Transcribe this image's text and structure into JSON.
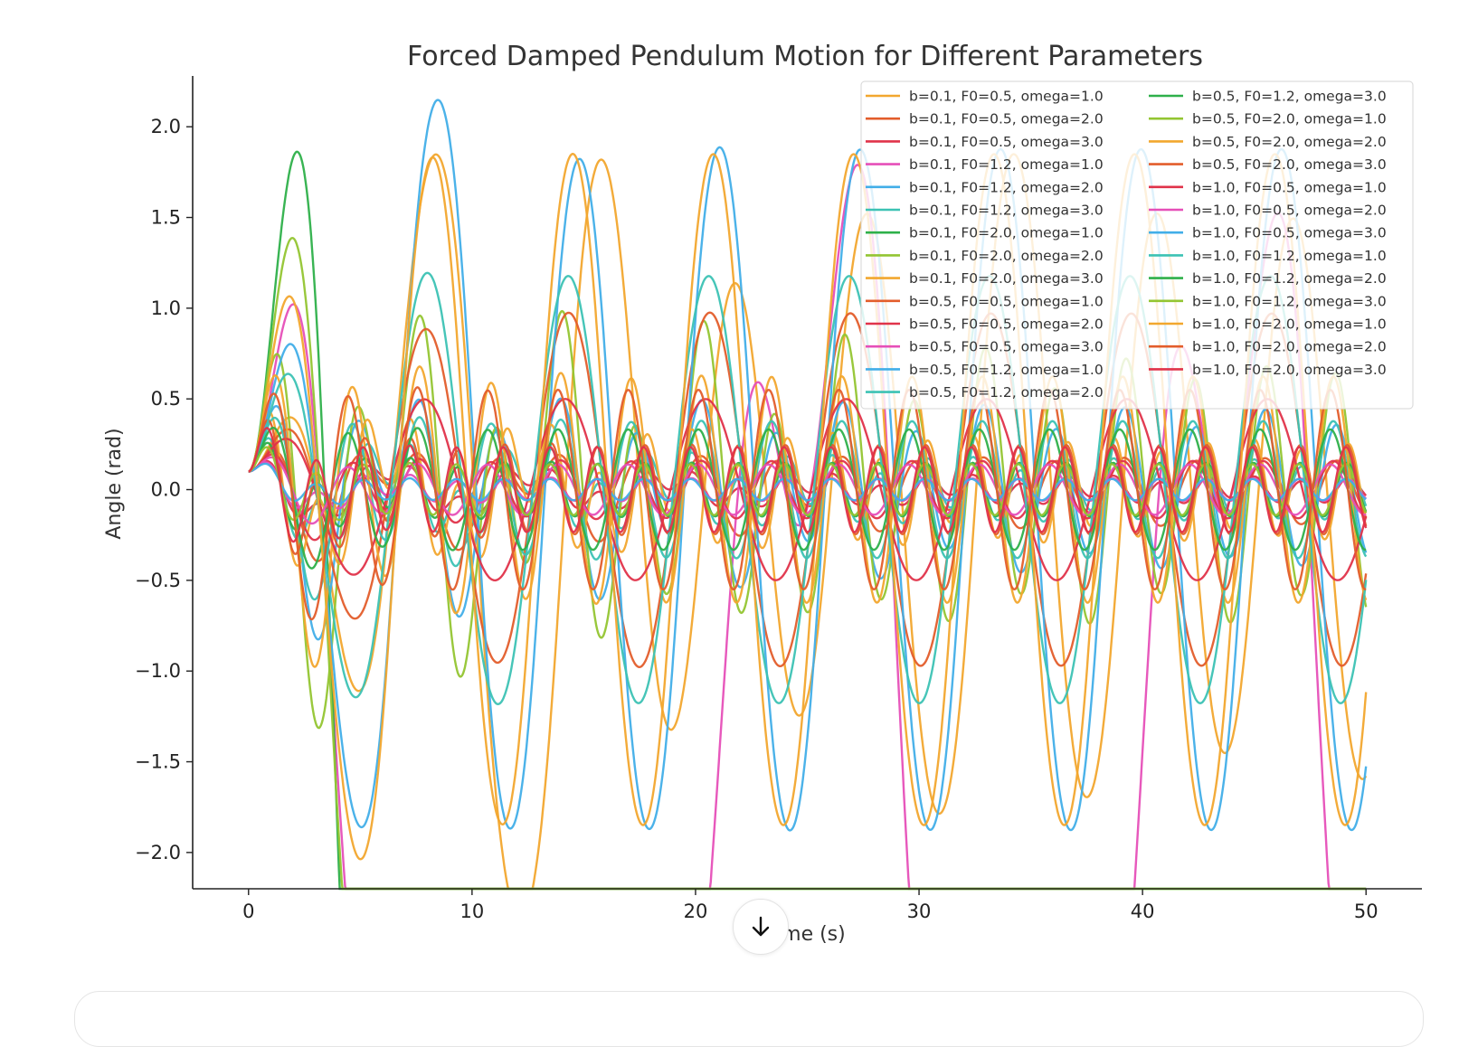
{
  "chart_data": {
    "type": "line",
    "title": "Forced Damped Pendulum Motion for Different Parameters",
    "xlabel": "Time (s)",
    "ylabel": "Angle (rad)",
    "xlim": [
      -2.5,
      52.5
    ],
    "ylim": [
      -2.2,
      2.28
    ],
    "x_range": [
      0,
      50
    ],
    "xticks": [
      0,
      10,
      20,
      30,
      40,
      50
    ],
    "yticks": [
      -2.0,
      -1.5,
      -1.0,
      -0.5,
      0.0,
      0.5,
      1.0,
      1.5,
      2.0
    ],
    "ytick_labels": [
      "−2.0",
      "−1.5",
      "−1.0",
      "−0.5",
      "0.0",
      "0.5",
      "1.0",
      "1.5",
      "2.0"
    ],
    "initial_angle": 0.1,
    "grid": false,
    "legend_placement": "top-right",
    "legend_columns": 2,
    "series": [
      {
        "name": "b=0.1, F0=0.5, omega=1.0",
        "color": "#f2a72e"
      },
      {
        "name": "b=0.1, F0=0.5, omega=2.0",
        "color": "#e35d2b"
      },
      {
        "name": "b=0.1, F0=0.5, omega=3.0",
        "color": "#e0334a"
      },
      {
        "name": "b=0.1, F0=1.2, omega=1.0",
        "color": "#e64fb8"
      },
      {
        "name": "b=0.1, F0=1.2, omega=2.0",
        "color": "#41aee8"
      },
      {
        "name": "b=0.1, F0=1.2, omega=3.0",
        "color": "#3cc2b4"
      },
      {
        "name": "b=0.1, F0=2.0, omega=1.0",
        "color": "#2eb04a"
      },
      {
        "name": "b=0.1, F0=2.0, omega=2.0",
        "color": "#93c532"
      },
      {
        "name": "b=0.1, F0=2.0, omega=3.0",
        "color": "#f2a72e"
      },
      {
        "name": "b=0.5, F0=0.5, omega=1.0",
        "color": "#e35d2b"
      },
      {
        "name": "b=0.5, F0=0.5, omega=2.0",
        "color": "#e0334a"
      },
      {
        "name": "b=0.5, F0=0.5, omega=3.0",
        "color": "#e64fb8"
      },
      {
        "name": "b=0.5, F0=1.2, omega=1.0",
        "color": "#41aee8"
      },
      {
        "name": "b=0.5, F0=1.2, omega=2.0",
        "color": "#3cc2b4"
      },
      {
        "name": "b=0.5, F0=1.2, omega=3.0",
        "color": "#2eb04a"
      },
      {
        "name": "b=0.5, F0=2.0, omega=1.0",
        "color": "#93c532"
      },
      {
        "name": "b=0.5, F0=2.0, omega=2.0",
        "color": "#f2a72e"
      },
      {
        "name": "b=0.5, F0=2.0, omega=3.0",
        "color": "#e35d2b"
      },
      {
        "name": "b=1.0, F0=0.5, omega=1.0",
        "color": "#e0334a"
      },
      {
        "name": "b=1.0, F0=0.5, omega=2.0",
        "color": "#e64fb8"
      },
      {
        "name": "b=1.0, F0=0.5, omega=3.0",
        "color": "#41aee8"
      },
      {
        "name": "b=1.0, F0=1.2, omega=1.0",
        "color": "#3cc2b4"
      },
      {
        "name": "b=1.0, F0=1.2, omega=2.0",
        "color": "#2eb04a"
      },
      {
        "name": "b=1.0, F0=1.2, omega=3.0",
        "color": "#93c532"
      },
      {
        "name": "b=1.0, F0=2.0, omega=1.0",
        "color": "#f2a72e"
      },
      {
        "name": "b=1.0, F0=2.0, omega=2.0",
        "color": "#e35d2b"
      },
      {
        "name": "b=1.0, F0=2.0, omega=3.0",
        "color": "#e0334a"
      }
    ]
  },
  "ui": {
    "scroll_down_icon": "arrow-down-icon"
  }
}
